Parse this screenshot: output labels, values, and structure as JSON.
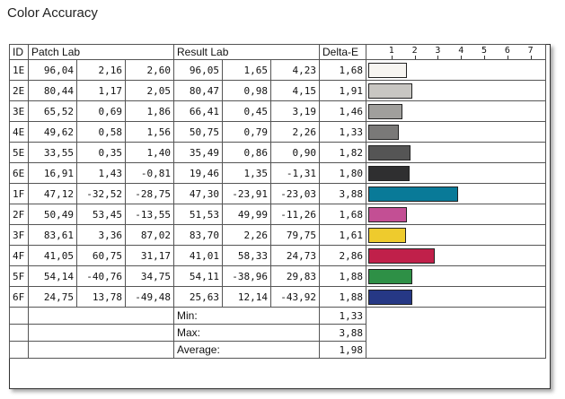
{
  "title": "Color Accuracy",
  "headers": {
    "id": "ID",
    "patch": "Patch Lab",
    "result": "Result Lab",
    "delta": "Delta-E"
  },
  "chart_data": {
    "type": "bar",
    "orientation": "horizontal",
    "xlim": [
      0,
      7.5
    ],
    "ticks": [
      "1",
      "2",
      "3",
      "4",
      "5",
      "6",
      "7"
    ],
    "rows": [
      {
        "id": "1E",
        "patch": [
          "96,04",
          "2,16",
          "2,60"
        ],
        "result": [
          "96,05",
          "1,65",
          "4,23"
        ],
        "delta": "1,68",
        "value": 1.68,
        "color": "#f7f5f1"
      },
      {
        "id": "2E",
        "patch": [
          "80,44",
          "1,17",
          "2,05"
        ],
        "result": [
          "80,47",
          "0,98",
          "4,15"
        ],
        "delta": "1,91",
        "value": 1.91,
        "color": "#c8c6c2"
      },
      {
        "id": "3E",
        "patch": [
          "65,52",
          "0,69",
          "1,86"
        ],
        "result": [
          "66,41",
          "0,45",
          "3,19"
        ],
        "delta": "1,46",
        "value": 1.46,
        "color": "#a09f9c"
      },
      {
        "id": "4E",
        "patch": [
          "49,62",
          "0,58",
          "1,56"
        ],
        "result": [
          "50,75",
          "0,79",
          "2,26"
        ],
        "delta": "1,33",
        "value": 1.33,
        "color": "#7a7978"
      },
      {
        "id": "5E",
        "patch": [
          "33,55",
          "0,35",
          "1,40"
        ],
        "result": [
          "35,49",
          "0,86",
          "0,90"
        ],
        "delta": "1,82",
        "value": 1.82,
        "color": "#555555"
      },
      {
        "id": "6E",
        "patch": [
          "16,91",
          "1,43",
          "-0,81"
        ],
        "result": [
          "19,46",
          "1,35",
          "-1,31"
        ],
        "delta": "1,80",
        "value": 1.8,
        "color": "#2f2f30"
      },
      {
        "id": "1F",
        "patch": [
          "47,12",
          "-32,52",
          "-28,75"
        ],
        "result": [
          "47,30",
          "-23,91",
          "-23,03"
        ],
        "delta": "3,88",
        "value": 3.88,
        "color": "#097a98"
      },
      {
        "id": "2F",
        "patch": [
          "50,49",
          "53,45",
          "-13,55"
        ],
        "result": [
          "51,53",
          "49,99",
          "-11,26"
        ],
        "delta": "1,68",
        "value": 1.68,
        "color": "#c34f94"
      },
      {
        "id": "3F",
        "patch": [
          "83,61",
          "3,36",
          "87,02"
        ],
        "result": [
          "83,70",
          "2,26",
          "79,75"
        ],
        "delta": "1,61",
        "value": 1.61,
        "color": "#eecb2d"
      },
      {
        "id": "4F",
        "patch": [
          "41,05",
          "60,75",
          "31,17"
        ],
        "result": [
          "41,01",
          "58,33",
          "24,73"
        ],
        "delta": "2,86",
        "value": 2.86,
        "color": "#c0204a"
      },
      {
        "id": "5F",
        "patch": [
          "54,14",
          "-40,76",
          "34,75"
        ],
        "result": [
          "54,11",
          "-38,96",
          "29,83"
        ],
        "delta": "1,88",
        "value": 1.88,
        "color": "#2e9046"
      },
      {
        "id": "6F",
        "patch": [
          "24,75",
          "13,78",
          "-49,48"
        ],
        "result": [
          "25,63",
          "12,14",
          "-43,92"
        ],
        "delta": "1,88",
        "value": 1.88,
        "color": "#263885"
      }
    ]
  },
  "summary": [
    {
      "label": "Min:",
      "value": "1,33"
    },
    {
      "label": "Max:",
      "value": "3,88"
    },
    {
      "label": "Average:",
      "value": "1,98"
    }
  ]
}
